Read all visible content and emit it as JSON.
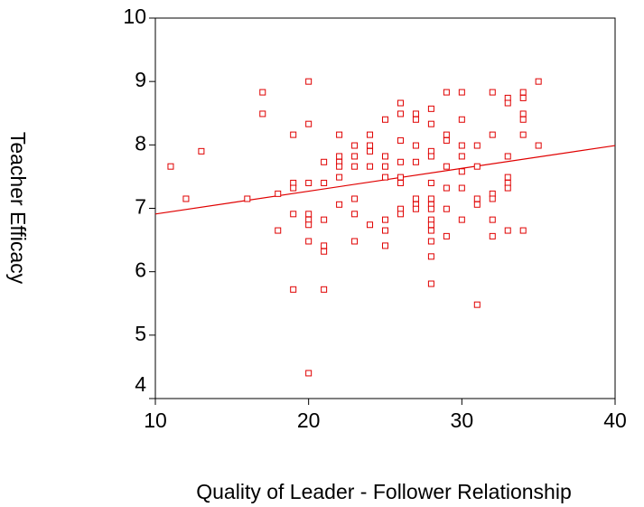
{
  "chart_data": {
    "type": "scatter",
    "xlabel": "Quality of Leader - Follower Relationship",
    "ylabel": "Teacher Efficacy",
    "xlim": [
      10,
      40
    ],
    "xticks": [
      10,
      20,
      30,
      40
    ],
    "ylim": [
      4,
      10
    ],
    "yticks": [
      4,
      5,
      6,
      7,
      8,
      9,
      10
    ],
    "color": "#e00000",
    "x": [
      11,
      12,
      13,
      16,
      17,
      17,
      18,
      18,
      19,
      19,
      19,
      19,
      19,
      20,
      20,
      20,
      20,
      20,
      20,
      20,
      20,
      21,
      21,
      21,
      21,
      21,
      21,
      22,
      22,
      22,
      22,
      22,
      22,
      23,
      23,
      23,
      23,
      23,
      23,
      24,
      24,
      24,
      24,
      24,
      25,
      25,
      25,
      25,
      25,
      25,
      25,
      26,
      26,
      26,
      26,
      26,
      26,
      26,
      26,
      27,
      27,
      27,
      27,
      27,
      27,
      27,
      28,
      28,
      28,
      28,
      28,
      28,
      28,
      28,
      28,
      28,
      28,
      28,
      28,
      28,
      29,
      29,
      29,
      29,
      29,
      29,
      29,
      30,
      30,
      30,
      30,
      30,
      30,
      30,
      31,
      31,
      31,
      31,
      31,
      32,
      32,
      32,
      32,
      32,
      32,
      33,
      33,
      33,
      33,
      33,
      33,
      33,
      34,
      34,
      34,
      34,
      34,
      34,
      35,
      35
    ],
    "values": [
      7.66,
      7.15,
      7.9,
      7.15,
      8.83,
      8.49,
      7.23,
      6.65,
      8.16,
      7.4,
      7.32,
      6.91,
      5.72,
      9.0,
      8.33,
      7.4,
      6.91,
      6.82,
      6.74,
      6.48,
      4.4,
      7.73,
      7.4,
      6.82,
      6.41,
      6.32,
      5.72,
      8.16,
      7.82,
      7.73,
      7.66,
      7.49,
      7.06,
      7.99,
      7.82,
      7.66,
      7.15,
      6.91,
      6.48,
      8.16,
      7.99,
      7.9,
      7.66,
      6.74,
      8.4,
      7.82,
      7.66,
      7.49,
      6.82,
      6.65,
      6.41,
      8.66,
      8.49,
      8.07,
      7.73,
      7.49,
      7.4,
      6.99,
      6.91,
      8.49,
      8.4,
      7.99,
      7.73,
      7.15,
      7.06,
      6.99,
      8.57,
      8.33,
      7.9,
      7.82,
      7.4,
      7.15,
      7.06,
      6.99,
      6.82,
      6.74,
      6.65,
      6.48,
      6.24,
      5.81,
      8.83,
      8.16,
      8.07,
      7.66,
      7.32,
      6.99,
      6.56,
      8.83,
      8.4,
      7.99,
      7.82,
      7.58,
      7.32,
      6.82,
      7.99,
      7.66,
      7.15,
      7.06,
      5.48,
      8.83,
      8.16,
      7.23,
      7.15,
      6.82,
      6.56,
      8.74,
      8.66,
      7.82,
      7.49,
      7.4,
      7.32,
      6.65,
      8.83,
      8.74,
      8.49,
      8.4,
      8.16,
      6.65,
      9.0,
      7.99
    ],
    "fit_line": {
      "x": [
        10,
        40
      ],
      "values": [
        6.91,
        7.99
      ],
      "color": "#e00000"
    }
  }
}
